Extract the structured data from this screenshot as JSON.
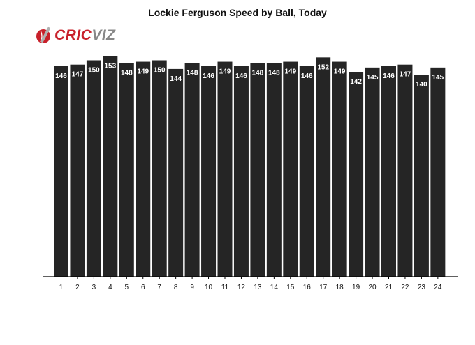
{
  "logo": {
    "part1": "CRIC",
    "part2": "VIZ"
  },
  "colors": {
    "bar": "#252525",
    "bar_label": "#ffffff",
    "axis": "#000000",
    "brand_red": "#c8202a",
    "brand_grey": "#888888"
  },
  "chart_data": {
    "type": "bar",
    "title": "Lockie Ferguson Speed by Ball, Today",
    "xlabel": "",
    "ylabel": "",
    "categories": [
      "1",
      "2",
      "3",
      "4",
      "5",
      "6",
      "7",
      "8",
      "9",
      "10",
      "11",
      "12",
      "13",
      "14",
      "15",
      "16",
      "17",
      "18",
      "19",
      "20",
      "21",
      "22",
      "23",
      "24"
    ],
    "values": [
      146,
      147,
      150,
      153,
      148,
      149,
      150,
      144,
      148,
      146,
      149,
      146,
      148,
      148,
      149,
      146,
      152,
      149,
      142,
      145,
      146,
      147,
      140,
      145
    ],
    "ylim": [
      0,
      157
    ],
    "grid": false,
    "legend": "none",
    "data_labels": true
  }
}
